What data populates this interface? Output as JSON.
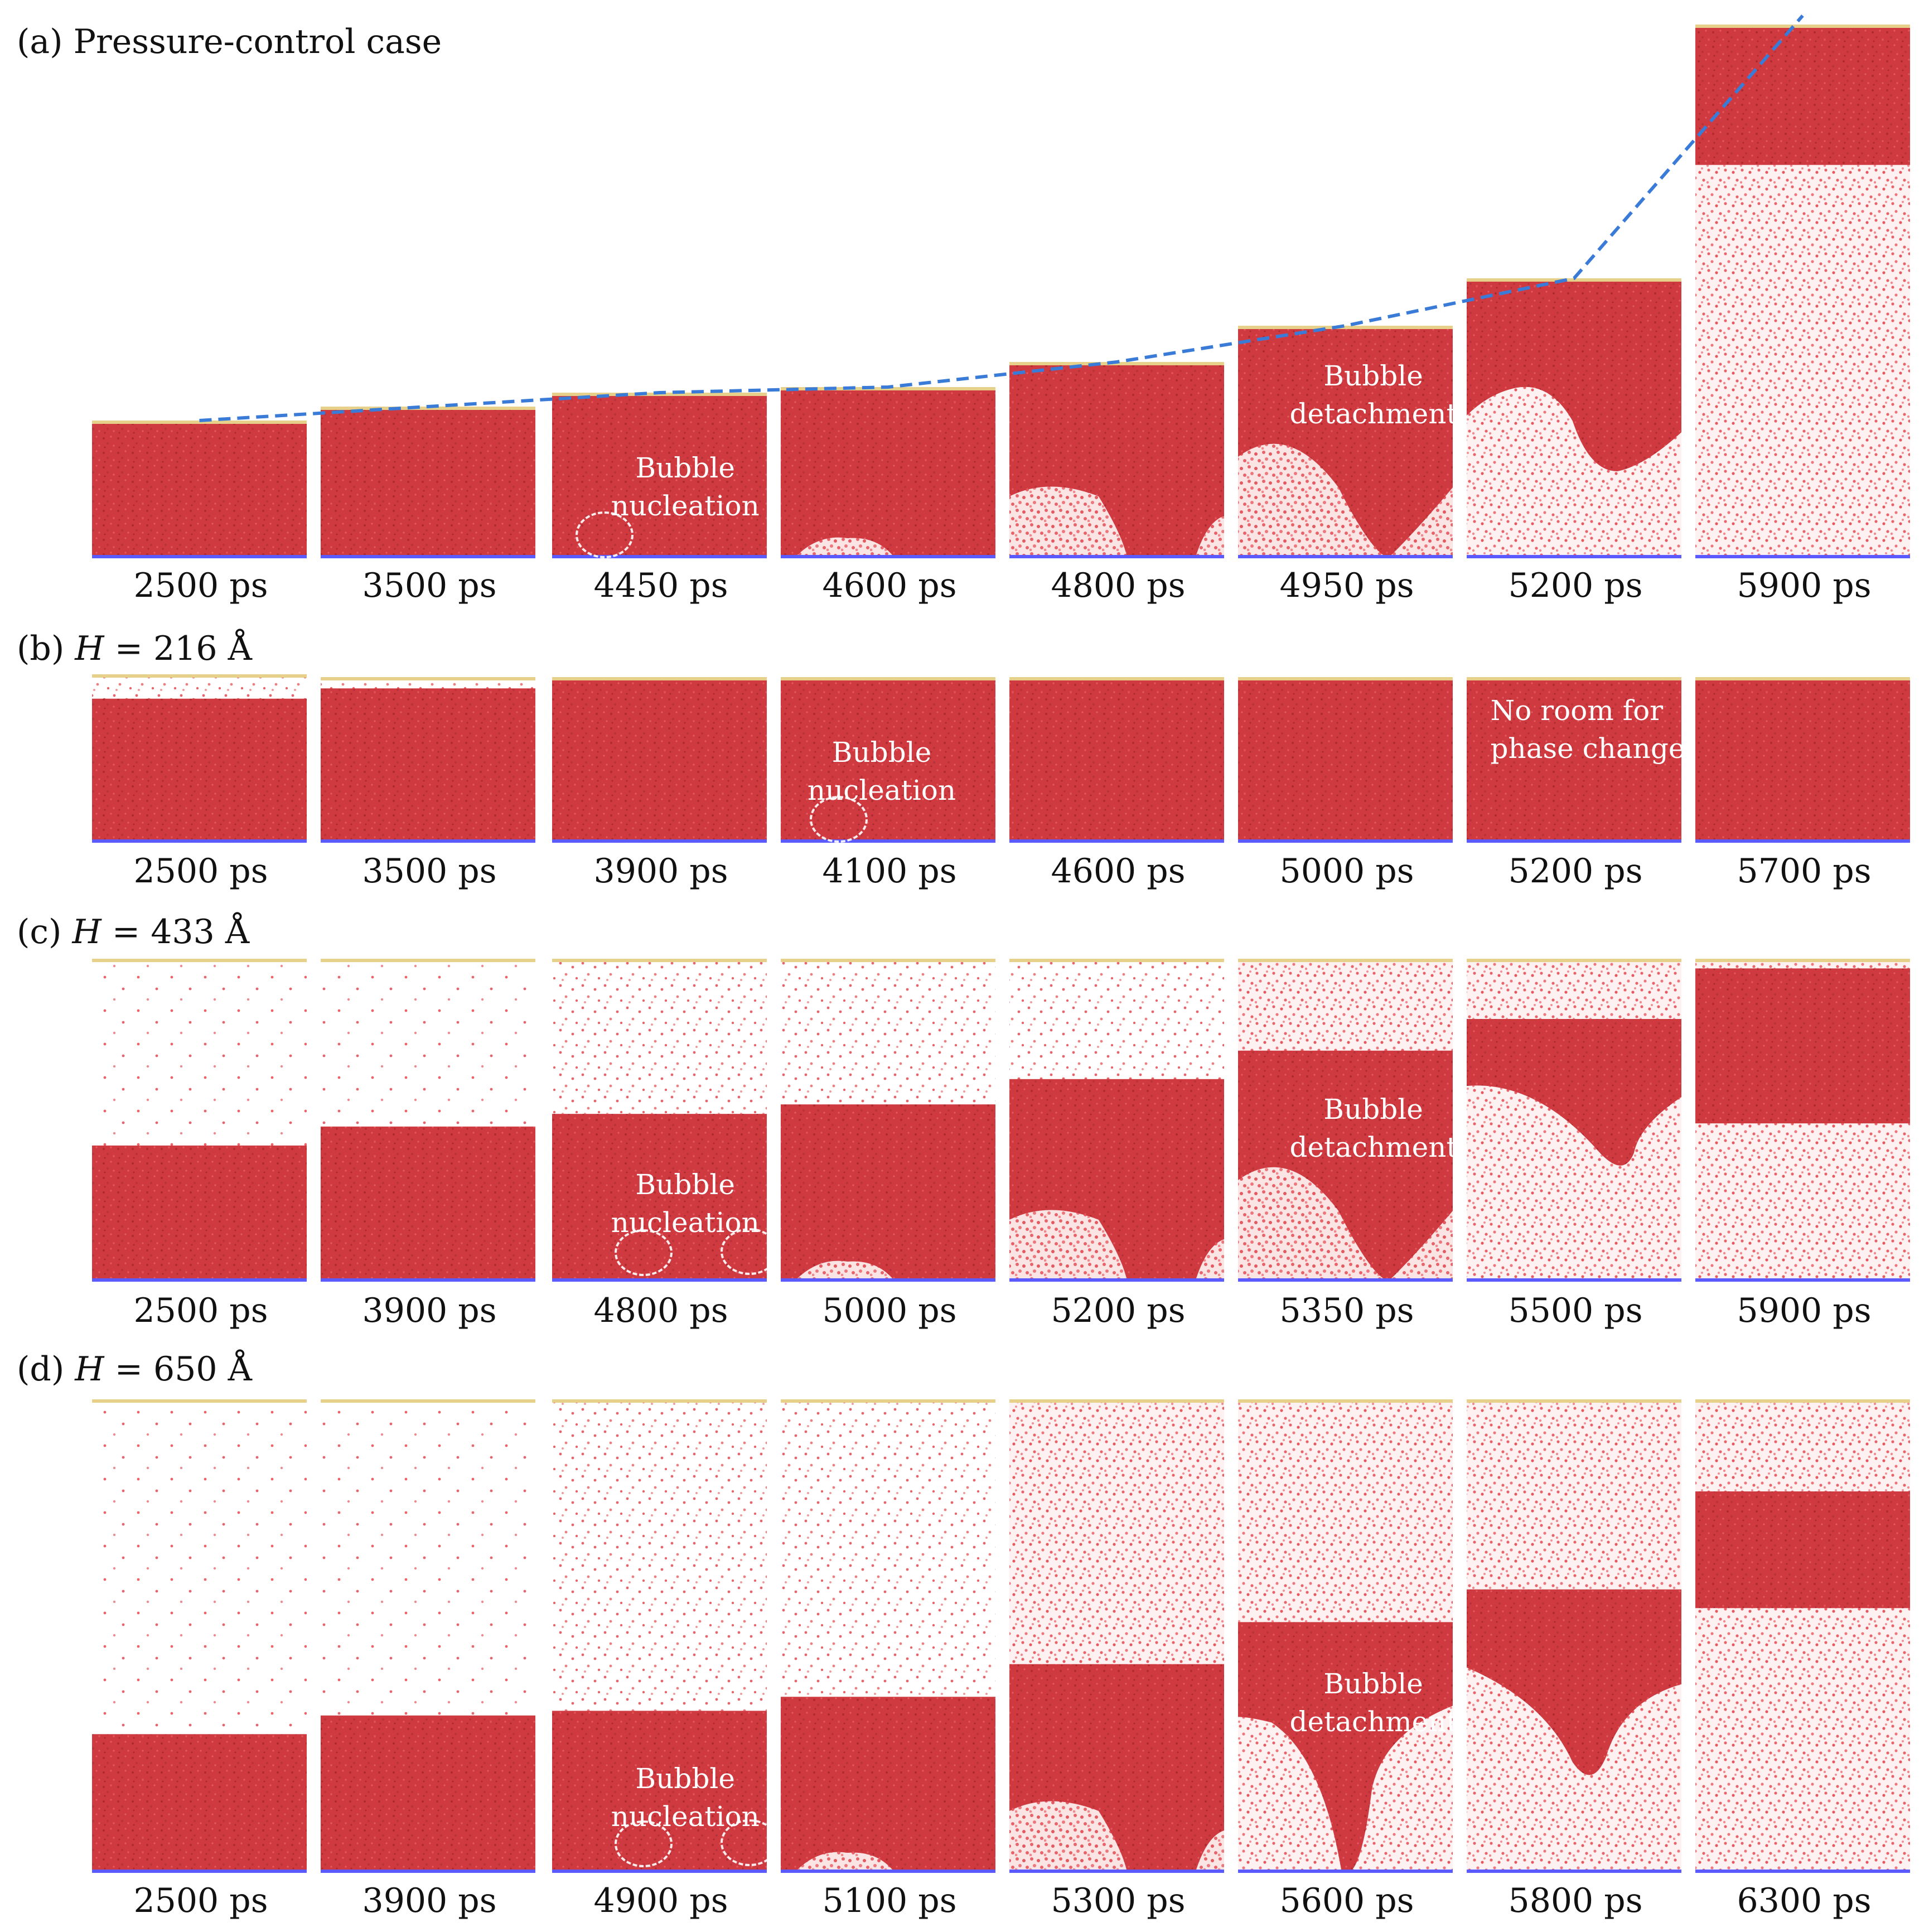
{
  "colors": {
    "liquid": "#cf3a40",
    "vapor_dot": "#e8646a",
    "wall_bottom": "#5a5aff",
    "wall_top": "#e6d08a",
    "trend_line": "#3b7bd8"
  },
  "rows": [
    {
      "id": "a",
      "prefix": "(a) ",
      "title": "Pressure-control case",
      "var": "",
      "rest": "",
      "times": [
        "2500 ps",
        "3500 ps",
        "4450 ps",
        "4600 ps",
        "4800 ps",
        "4950 ps",
        "5200 ps",
        "5900 ps"
      ],
      "annotations": [
        {
          "panel": 2,
          "lines": [
            "Bubble",
            "nucleation"
          ]
        },
        {
          "panel": 5,
          "lines": [
            "Bubble",
            "detachment"
          ]
        }
      ]
    },
    {
      "id": "b",
      "prefix": "(b) ",
      "title": "",
      "var": "H",
      "rest": " = 216 Å",
      "times": [
        "2500 ps",
        "3500 ps",
        "3900 ps",
        "4100 ps",
        "4600 ps",
        "5000 ps",
        "5200 ps",
        "5700 ps"
      ],
      "annotations": [
        {
          "panel": 3,
          "lines": [
            "Bubble",
            "nucleation"
          ]
        },
        {
          "panel": 6,
          "lines": [
            "No room for",
            "phase change"
          ]
        }
      ]
    },
    {
      "id": "c",
      "prefix": "(c) ",
      "title": "",
      "var": "H",
      "rest": " = 433 Å",
      "times": [
        "2500 ps",
        "3900 ps",
        "4800 ps",
        "5000 ps",
        "5200 ps",
        "5350 ps",
        "5500 ps",
        "5900 ps"
      ],
      "annotations": [
        {
          "panel": 2,
          "lines": [
            "Bubble",
            "nucleation"
          ]
        },
        {
          "panel": 5,
          "lines": [
            "Bubble",
            "detachment"
          ]
        }
      ]
    },
    {
      "id": "d",
      "prefix": "(d) ",
      "title": "",
      "var": "H",
      "rest": " = 650 Å",
      "times": [
        "2500 ps",
        "3900 ps",
        "4900 ps",
        "5100 ps",
        "5300 ps",
        "5600 ps",
        "5800 ps",
        "6300 ps"
      ],
      "annotations": [
        {
          "panel": 2,
          "lines": [
            "Bubble",
            "nucleation"
          ]
        },
        {
          "panel": 5,
          "lines": [
            "Bubble",
            "detachment"
          ]
        }
      ]
    }
  ]
}
